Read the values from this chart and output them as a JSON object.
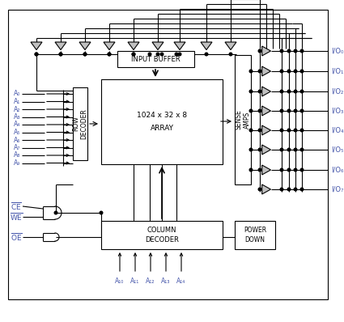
{
  "bg": "#ffffff",
  "lc": "#000000",
  "tri_fill": "#c0c0c0",
  "label_color": "#4455aa",
  "io_labels": [
    "I/O₀",
    "I/O₁",
    "I/O₂",
    "I/O₃",
    "I/O₄",
    "I/O₅",
    "I/O₆",
    "I/O₇"
  ],
  "row_addr": [
    "A₀",
    "A₁",
    "A₂",
    "A₃",
    "A₄",
    "A₅",
    "A₆",
    "A₇",
    "A₈",
    "A₉"
  ],
  "col_addr": [
    "A₁₀",
    "A₁₁",
    "A₁₂",
    "A₁₃",
    "A₁₄"
  ],
  "lw": 0.8,
  "lw_thick": 1.2
}
